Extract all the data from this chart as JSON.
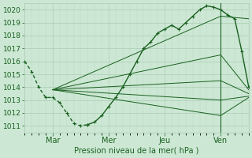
{
  "title": "Pression niveau de la mer( hPa )",
  "bg_color": "#cce8d4",
  "grid_color_major": "#aaccb4",
  "grid_color_minor": "#bdd8c4",
  "line_color": "#1a6020",
  "text_color": "#1a6020",
  "ylim": [
    1010.5,
    1020.5
  ],
  "yticks": [
    1011,
    1012,
    1013,
    1014,
    1015,
    1016,
    1017,
    1018,
    1019,
    1020
  ],
  "xlim": [
    0,
    96
  ],
  "xtick_positions": [
    12,
    36,
    60,
    84
  ],
  "xtick_labels": [
    "Mar",
    "Mer",
    "Jeu",
    "Ven"
  ],
  "vline_x": 84,
  "forecast_main_x": [
    0,
    3,
    6,
    9,
    12,
    15,
    18,
    21,
    24,
    27,
    30,
    33,
    36,
    39,
    42,
    45,
    48,
    51,
    54,
    57,
    60,
    63,
    66,
    69,
    72,
    75,
    78,
    81,
    84,
    87,
    90,
    93,
    96
  ],
  "forecast_main_y": [
    1016.0,
    1015.2,
    1014.0,
    1013.2,
    1013.2,
    1012.8,
    1012.0,
    1011.2,
    1011.0,
    1011.1,
    1011.3,
    1011.8,
    1012.5,
    1013.2,
    1014.0,
    1015.0,
    1016.0,
    1017.0,
    1017.5,
    1018.2,
    1018.5,
    1018.8,
    1018.5,
    1019.0,
    1019.5,
    1020.0,
    1020.3,
    1020.2,
    1020.0,
    1019.6,
    1019.3,
    1016.8,
    1014.0
  ],
  "forecast_dashed_end": 9,
  "fan_origin_x": 12,
  "fan_origin_y": 1013.8,
  "fan_end_x": 84,
  "fan_lines_end_y": [
    1019.5,
    1016.5,
    1014.5,
    1013.0,
    1011.8
  ],
  "fan_tail_end_x": 96,
  "fan_tail_end_y": [
    1019.3,
    1013.8,
    1013.5,
    1013.3,
    1013.2
  ]
}
